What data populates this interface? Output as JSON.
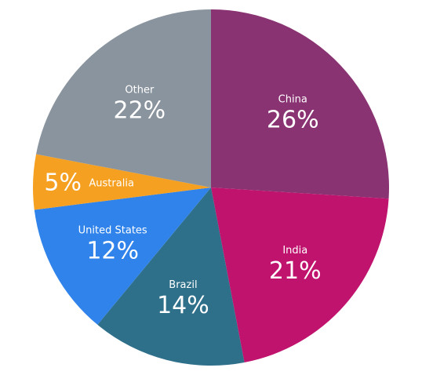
{
  "chart_data": {
    "type": "pie",
    "categories": [
      "China",
      "India",
      "Brazil",
      "United States",
      "Australia",
      "Other"
    ],
    "values": [
      26,
      21,
      14,
      12,
      5,
      22
    ],
    "value_labels": [
      "26%",
      "21%",
      "14%",
      "12%",
      "5%",
      "22%"
    ],
    "colors": [
      "#8a3372",
      "#c0136e",
      "#2e6f8a",
      "#2f83ea",
      "#f5a021",
      "#8a949e"
    ]
  }
}
